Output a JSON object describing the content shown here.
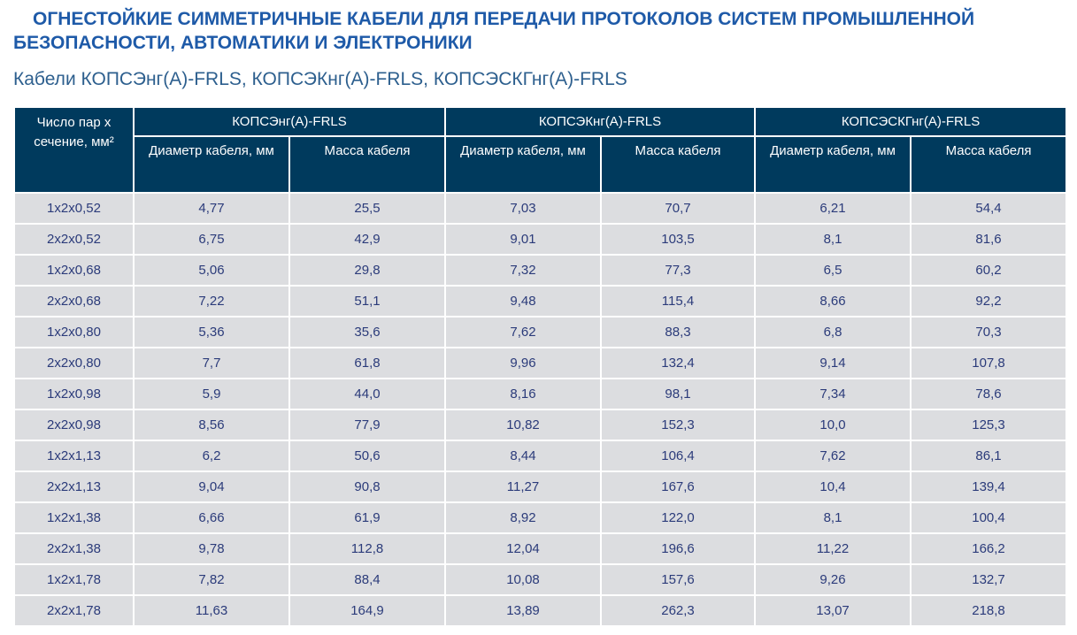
{
  "title_line1": "ОГНЕСТОЙКИЕ СИММЕТРИЧНЫЕ КАБЕЛИ ДЛЯ ПЕРЕДАЧИ ПРОТОКОЛОВ СИСТЕМ ПРОМЫШЛЕННОЙ",
  "title_line2": "БЕЗОПАСНОСТИ, АВТОМАТИКИ И ЭЛЕКТРОНИКИ",
  "subtitle": "Кабели КОПСЭнг(А)-FRLS, КОПСЭКнг(А)-FRLS, КОПСЭСКГнг(А)-FRLS",
  "table": {
    "corner": "Число пар х сечение, мм²",
    "groups": [
      "КОПСЭнг(А)-FRLS",
      "КОПСЭКнг(А)-FRLS",
      "КОПСЭСКГнг(А)-FRLS"
    ],
    "sub": [
      "Диаметр кабеля, мм",
      "Масса кабеля"
    ],
    "rows": [
      [
        "1х2х0,52",
        "4,77",
        "25,5",
        "7,03",
        "70,7",
        "6,21",
        "54,4"
      ],
      [
        "2х2х0,52",
        "6,75",
        "42,9",
        "9,01",
        "103,5",
        "8,1",
        "81,6"
      ],
      [
        "1х2х0,68",
        "5,06",
        "29,8",
        "7,32",
        "77,3",
        "6,5",
        "60,2"
      ],
      [
        "2х2х0,68",
        "7,22",
        "51,1",
        "9,48",
        "115,4",
        "8,66",
        "92,2"
      ],
      [
        "1х2х0,80",
        "5,36",
        "35,6",
        "7,62",
        "88,3",
        "6,8",
        "70,3"
      ],
      [
        "2х2х0,80",
        "7,7",
        "61,8",
        "9,96",
        "132,4",
        "9,14",
        "107,8"
      ],
      [
        "1х2х0,98",
        "5,9",
        "44,0",
        "8,16",
        "98,1",
        "7,34",
        "78,6"
      ],
      [
        "2х2х0,98",
        "8,56",
        "77,9",
        "10,82",
        "152,3",
        "10,0",
        "125,3"
      ],
      [
        "1х2х1,13",
        "6,2",
        "50,6",
        "8,44",
        "106,4",
        "7,62",
        "86,1"
      ],
      [
        "2х2х1,13",
        "9,04",
        "90,8",
        "11,27",
        "167,6",
        "10,4",
        "139,4"
      ],
      [
        "1х2х1,38",
        "6,66",
        "61,9",
        "8,92",
        "122,0",
        "8,1",
        "100,4"
      ],
      [
        "2х2х1,38",
        "9,78",
        "112,8",
        "12,04",
        "196,6",
        "11,22",
        "166,2"
      ],
      [
        "1х2х1,78",
        "7,82",
        "88,4",
        "10,08",
        "157,6",
        "9,26",
        "132,7"
      ],
      [
        "2х2х1,78",
        "11,63",
        "164,9",
        "13,89",
        "262,3",
        "13,07",
        "218,8"
      ]
    ]
  }
}
